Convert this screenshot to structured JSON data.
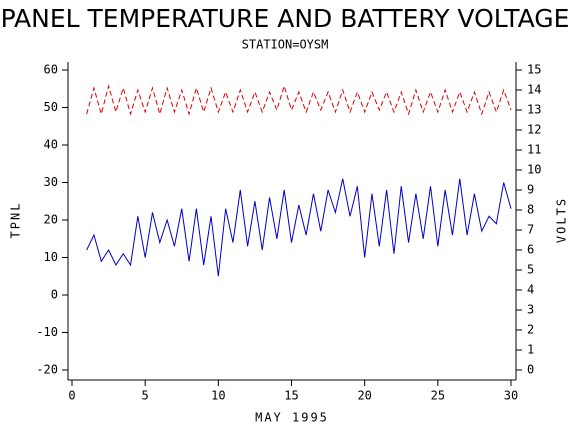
{
  "chart_data": {
    "type": "line",
    "title": "PANEL TEMPERATURE AND BATTERY VOLTAGE",
    "subtitle": "STATION=OYSM",
    "x_label": "MAY 1995",
    "y_label": "TPNL",
    "y2_label": "VOLTS",
    "x": [
      1,
      1.5,
      2,
      2.5,
      3,
      3.5,
      4,
      4.5,
      5,
      5.5,
      6,
      6.5,
      7,
      7.5,
      8,
      8.5,
      9,
      9.5,
      10,
      10.5,
      11,
      11.5,
      12,
      12.5,
      13,
      13.5,
      14,
      14.5,
      15,
      15.5,
      16,
      16.5,
      17,
      17.5,
      18,
      18.5,
      19,
      19.5,
      20,
      20.5,
      21,
      21.5,
      22,
      22.5,
      23,
      23.5,
      24,
      24.5,
      25,
      25.5,
      26,
      26.5,
      27,
      27.5,
      28,
      28.5,
      29,
      29.5,
      30
    ],
    "series": [
      {
        "name": "TPNL",
        "color": "#0000cc",
        "dash": false,
        "values": [
          12,
          16,
          9,
          12,
          8,
          11,
          8,
          21,
          10,
          22,
          14,
          20,
          13,
          23,
          9,
          23,
          8,
          21,
          5,
          23,
          14,
          28,
          13,
          25,
          12,
          26,
          15,
          28,
          14,
          24,
          16,
          27,
          17,
          28,
          22,
          31,
          21,
          29,
          10,
          27,
          13,
          28,
          11,
          29,
          14,
          27,
          15,
          29,
          13,
          28,
          16,
          31,
          16,
          27,
          17,
          21,
          19,
          30,
          23
        ]
      },
      {
        "name": "VOLTS",
        "color": "#dd0000",
        "dash": true,
        "axis": "y2",
        "values": [
          12.8,
          14.1,
          12.8,
          14.2,
          12.9,
          14.1,
          12.8,
          14.0,
          12.9,
          14.1,
          12.8,
          14.1,
          12.9,
          14.0,
          12.8,
          14.1,
          12.9,
          14.1,
          12.9,
          13.9,
          12.9,
          14.0,
          12.9,
          13.9,
          12.9,
          13.9,
          13.0,
          14.2,
          13.0,
          13.9,
          12.9,
          13.9,
          13.0,
          13.9,
          12.9,
          14.0,
          12.9,
          13.9,
          12.9,
          13.9,
          13.0,
          13.9,
          12.9,
          13.9,
          12.8,
          14.0,
          12.9,
          13.9,
          12.9,
          14.0,
          12.9,
          13.9,
          12.9,
          13.9,
          12.8,
          13.9,
          12.9,
          14.0,
          13.0
        ]
      }
    ],
    "xlim": [
      0,
      30
    ],
    "xticks": [
      0,
      5,
      10,
      15,
      20,
      25,
      30
    ],
    "ylim": [
      -20,
      60
    ],
    "yticks": [
      -20,
      -10,
      0,
      10,
      20,
      30,
      40,
      50,
      60
    ],
    "y2lim": [
      0,
      15
    ],
    "y2ticks": [
      0,
      1,
      2,
      3,
      4,
      5,
      6,
      7,
      8,
      9,
      10,
      11,
      12,
      13,
      14,
      15
    ]
  }
}
